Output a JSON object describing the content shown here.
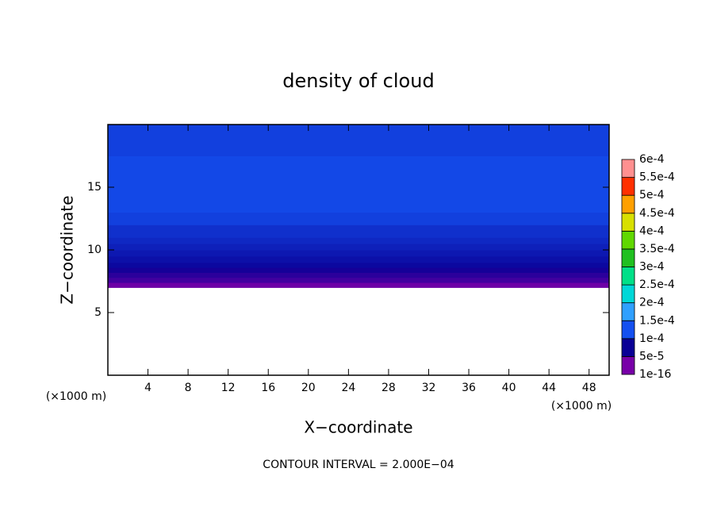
{
  "chart_data": {
    "type": "contour",
    "title": "density of cloud",
    "xlabel": "X−coordinate",
    "ylabel": "Z−coordinate",
    "x_unit": "(×1000 m)",
    "x_unit_right": "(×1000 m)",
    "note": "CONTOUR INTERVAL = 2.000E−04",
    "xlim": [
      0,
      50
    ],
    "xticks": [
      4,
      8,
      12,
      16,
      20,
      24,
      28,
      32,
      36,
      40,
      44,
      48
    ],
    "ylim": [
      0,
      20
    ],
    "yticks": [
      5,
      10,
      15
    ],
    "z": [
      7,
      7.4,
      7.8,
      8.2,
      8.6,
      9,
      9.5,
      10,
      10.5,
      11,
      12,
      13,
      17.5,
      20
    ],
    "values": [
      3e-05,
      5e-05,
      6e-05,
      7e-05,
      8e-05,
      8.5e-05,
      9e-05,
      9.5e-05,
      0.0001,
      0.000105,
      0.000115,
      0.00012,
      0.000115
    ],
    "colorbar": {
      "ticks": [
        {
          "value": 1e-16,
          "label": "1e-16"
        },
        {
          "value": 5e-05,
          "label": "5e-5"
        },
        {
          "value": 0.0001,
          "label": "1e-4"
        },
        {
          "value": 0.00015,
          "label": "1.5e-4"
        },
        {
          "value": 0.0002,
          "label": "2e-4"
        },
        {
          "value": 0.00025,
          "label": "2.5e-4"
        },
        {
          "value": 0.0003,
          "label": "3e-4"
        },
        {
          "value": 0.00035,
          "label": "3.5e-4"
        },
        {
          "value": 0.0004,
          "label": "4e-4"
        },
        {
          "value": 0.00045,
          "label": "4.5e-4"
        },
        {
          "value": 0.0005,
          "label": "5e-4"
        },
        {
          "value": 0.00055,
          "label": "5.5e-4"
        },
        {
          "value": 0.0006,
          "label": "6e-4"
        }
      ],
      "colors": [
        "#7800a8",
        "#0a0096",
        "#1450f0",
        "#30a0ff",
        "#00d8d8",
        "#00e088",
        "#20c020",
        "#60d800",
        "#d8e000",
        "#ffa000",
        "#ff3000",
        "#ff9090"
      ]
    }
  }
}
